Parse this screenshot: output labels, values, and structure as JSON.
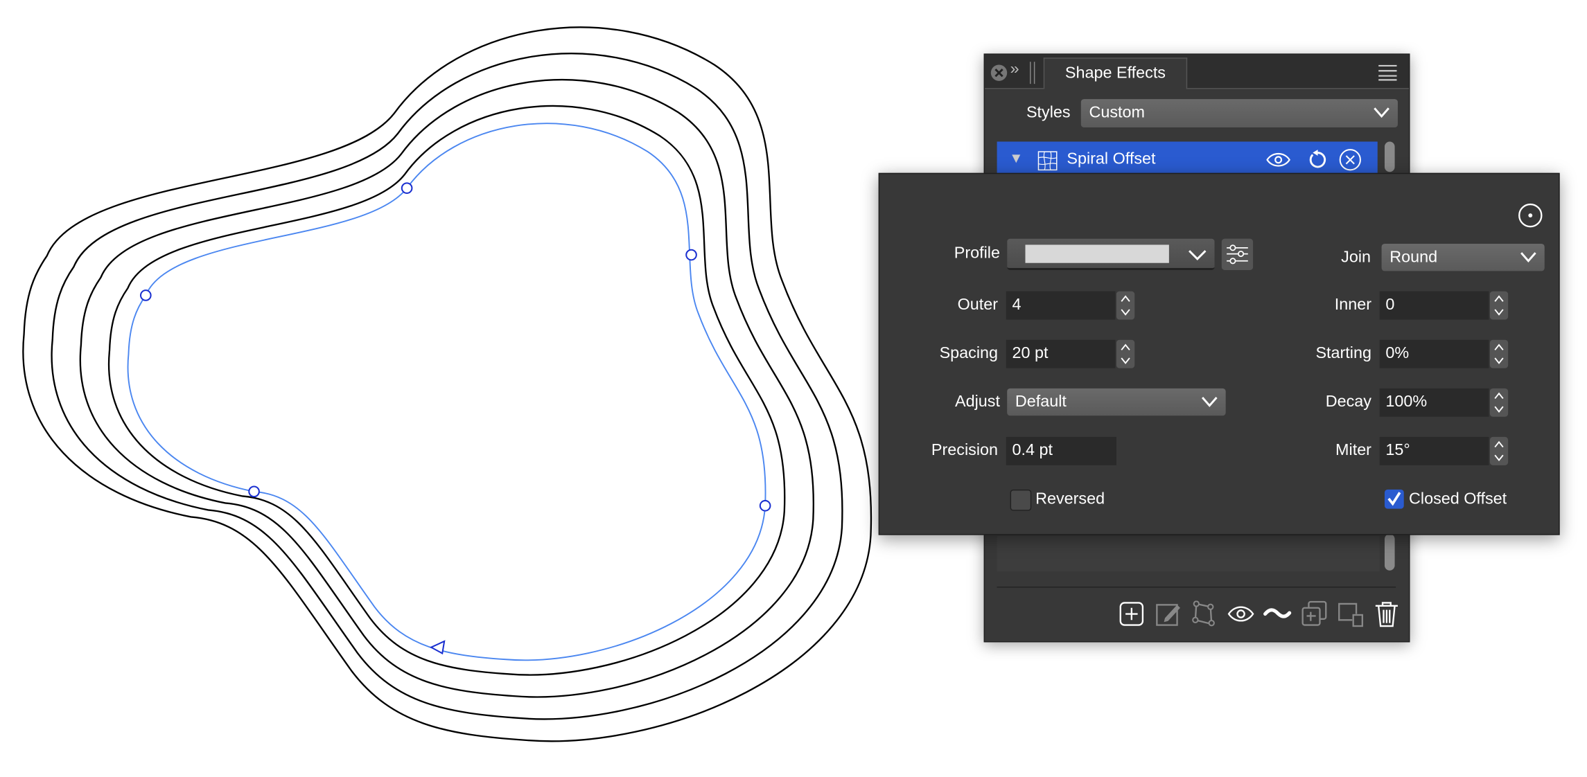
{
  "panel": {
    "tab_title": "Shape Effects",
    "styles_label": "Styles",
    "styles_value": "Custom",
    "effect": {
      "name": "Spiral Offset",
      "selected": true
    },
    "toolbar_icons": [
      "add-icon",
      "edit-icon",
      "node-shape-icon",
      "eye-icon",
      "wave-icon",
      "duplicate-icon",
      "arrange-icon",
      "trash-icon"
    ]
  },
  "popover": {
    "profile": {
      "label": "Profile"
    },
    "join": {
      "label": "Join",
      "value": "Round"
    },
    "outer": {
      "label": "Outer",
      "value": "4"
    },
    "inner": {
      "label": "Inner",
      "value": "0"
    },
    "spacing": {
      "label": "Spacing",
      "value": "20 pt"
    },
    "starting": {
      "label": "Starting",
      "value": "0%"
    },
    "adjust": {
      "label": "Adjust",
      "value": "Default"
    },
    "decay": {
      "label": "Decay",
      "value": "100%"
    },
    "precision": {
      "label": "Precision",
      "value": "0.4 pt"
    },
    "miter": {
      "label": "Miter",
      "value": "15°"
    },
    "reversed": {
      "label": "Reversed",
      "checked": false
    },
    "closed_offset": {
      "label": "Closed Offset",
      "checked": true
    }
  },
  "colors": {
    "accent": "#2a5bd0",
    "curve": "#4a86f0",
    "panel_bg": "#383838"
  }
}
